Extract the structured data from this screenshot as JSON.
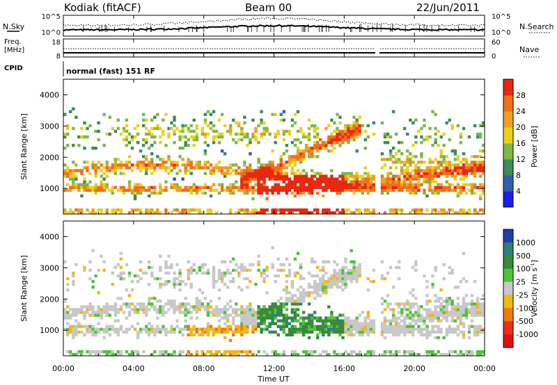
{
  "header": {
    "station": "Kodiak (fitACF)",
    "beam": "Beam 00",
    "date": "22/Jun/2011"
  },
  "side_labels": {
    "nsky": "N.Sky",
    "nsearch": "N.Search",
    "freq_line1": "Freq.",
    "freq_line2": "[MHz]",
    "nave": "Nave",
    "cpid": "CPID"
  },
  "noise_axis": {
    "left_ticks": [
      "10^5",
      "10^0"
    ],
    "right_ticks": [
      "10^5",
      "10^0"
    ]
  },
  "freq_axis": {
    "left_ticks": [
      "18",
      "8"
    ],
    "right_ticks": [
      "60",
      "0"
    ]
  },
  "cpid_text": "normal (fast) 151 RF",
  "chart_data": [
    {
      "type": "heatmap",
      "name": "power",
      "ylabel": "Slant Range [km]",
      "xlabel": "",
      "ylim": [
        180,
        4500
      ],
      "yticks": [
        "1000",
        "2000",
        "3000",
        "4000"
      ],
      "colorbar_label": "Power [dB]",
      "colorbar_ticks": [
        "4",
        "8",
        "12",
        "16",
        "20",
        "24",
        "28"
      ],
      "colorbar_colors": [
        "#1e1ee6",
        "#2f5fb0",
        "#3f8a5a",
        "#7db84a",
        "#e8d21e",
        "#f0a020",
        "#f07018",
        "#e82810"
      ]
    },
    {
      "type": "heatmap",
      "name": "velocity",
      "ylabel": "Slant Range [km]",
      "xlabel": "Time UT",
      "ylim": [
        180,
        4500
      ],
      "yticks": [
        "1000",
        "2000",
        "3000",
        "4000"
      ],
      "xticks": [
        "00:00",
        "04:00",
        "08:00",
        "12:00",
        "16:00",
        "20:00",
        "00:00"
      ],
      "colorbar_label": "Velocity [m s",
      "colorbar_label_sup": "-1",
      "colorbar_label_end": "]",
      "colorbar_ticks": [
        "1000",
        "500",
        "100",
        "25",
        "-25",
        "-100",
        "-500",
        "-1000"
      ],
      "colorbar_colors": [
        "#1c3fb0",
        "#2f7f7a",
        "#3a8a3a",
        "#4ec43a",
        "#c8c8c8",
        "#f0b818",
        "#f07a10",
        "#e83018",
        "#e01010"
      ]
    }
  ]
}
